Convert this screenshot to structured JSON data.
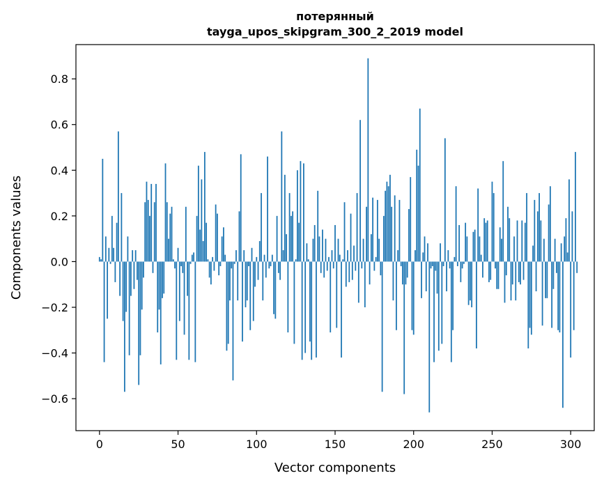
{
  "chart_data": {
    "type": "bar",
    "title_line1": "потерянный",
    "title_line2": "tayga_upos_skipgram_300_2_2019 model",
    "xlabel": "Vector components",
    "ylabel": "Components values",
    "xlim": [
      -15,
      315
    ],
    "ylim": [
      -0.74,
      0.95
    ],
    "xticks": [
      0,
      50,
      100,
      150,
      200,
      250,
      300
    ],
    "yticks": [
      -0.6,
      -0.4,
      -0.2,
      0.0,
      0.2,
      0.4,
      0.6,
      0.8
    ],
    "ytick_labels": [
      "−0.6",
      "−0.4",
      "−0.2",
      "0.0",
      "0.2",
      "0.4",
      "0.6",
      "0.8"
    ],
    "bar_color": "#1f77b4",
    "grid": false,
    "values": [
      0.02,
      0.01,
      0.45,
      -0.44,
      0.11,
      -0.25,
      0.06,
      -0.01,
      0.2,
      0.06,
      -0.09,
      0.17,
      0.57,
      -0.15,
      0.3,
      -0.26,
      -0.57,
      -0.22,
      0.11,
      -0.41,
      -0.15,
      0.05,
      -0.12,
      0.05,
      -0.08,
      -0.54,
      -0.41,
      -0.21,
      -0.07,
      0.26,
      0.35,
      0.27,
      0.2,
      0.34,
      -0.05,
      0.26,
      0.34,
      -0.31,
      -0.21,
      -0.45,
      -0.16,
      -0.14,
      0.43,
      0.26,
      0.1,
      0.21,
      0.24,
      0.01,
      -0.03,
      -0.43,
      0.06,
      -0.26,
      -0.02,
      -0.05,
      -0.32,
      0.24,
      -0.15,
      -0.43,
      -0.01,
      0.03,
      0.04,
      -0.44,
      0.2,
      0.42,
      0.14,
      0.36,
      0.09,
      0.48,
      0.17,
      0.01,
      -0.07,
      -0.1,
      0.02,
      -0.04,
      0.25,
      0.21,
      -0.06,
      -0.02,
      0.11,
      0.15,
      0.03,
      -0.39,
      -0.36,
      -0.17,
      -0.03,
      -0.52,
      -0.01,
      0.05,
      -0.17,
      0.22,
      0.47,
      -0.35,
      0.05,
      -0.2,
      -0.17,
      -0.02,
      -0.3,
      0.06,
      -0.26,
      -0.11,
      0.02,
      -0.08,
      0.09,
      0.3,
      -0.17,
      0.03,
      -0.07,
      0.46,
      -0.03,
      -0.02,
      0.03,
      -0.23,
      -0.25,
      0.2,
      -0.05,
      -0.08,
      0.57,
      0.05,
      0.38,
      0.12,
      -0.31,
      0.3,
      0.2,
      0.22,
      -0.36,
      0.01,
      0.4,
      0.17,
      0.44,
      -0.43,
      0.43,
      -0.4,
      0.08,
      0.01,
      -0.35,
      -0.43,
      0.1,
      0.16,
      -0.42,
      0.31,
      0.11,
      -0.05,
      0.14,
      -0.07,
      0.1,
      -0.04,
      0.02,
      -0.31,
      0.05,
      -0.03,
      0.16,
      -0.29,
      0.1,
      0.03,
      -0.42,
      0.01,
      0.26,
      -0.11,
      0.05,
      -0.09,
      0.21,
      -0.08,
      0.07,
      -0.04,
      0.3,
      -0.18,
      0.62,
      -0.03,
      0.1,
      -0.2,
      0.24,
      0.89,
      -0.1,
      0.12,
      0.28,
      -0.04,
      0.02,
      0.27,
      0.1,
      -0.06,
      -0.57,
      0.2,
      0.31,
      0.35,
      0.33,
      0.38,
      0.24,
      -0.17,
      0.29,
      -0.3,
      0.05,
      0.27,
      -0.02,
      -0.1,
      -0.58,
      -0.1,
      -0.07,
      0.23,
      0.37,
      -0.3,
      -0.32,
      0.05,
      0.49,
      0.42,
      0.67,
      -0.16,
      0.04,
      0.11,
      -0.13,
      0.08,
      -0.66,
      -0.03,
      -0.02,
      -0.44,
      -0.04,
      -0.14,
      -0.39,
      0.08,
      -0.36,
      -0.02,
      0.54,
      -0.13,
      0.05,
      -0.03,
      -0.44,
      -0.3,
      0.02,
      0.33,
      -0.02,
      0.16,
      -0.09,
      -0.03,
      -0.01,
      0.17,
      0.11,
      -0.19,
      -0.17,
      -0.2,
      0.13,
      0.14,
      -0.38,
      0.32,
      0.11,
      0.03,
      -0.07,
      0.19,
      0.17,
      0.18,
      -0.09,
      -0.08,
      0.35,
      0.3,
      -0.03,
      -0.12,
      -0.12,
      0.15,
      0.1,
      0.44,
      -0.18,
      -0.06,
      0.24,
      0.19,
      -0.17,
      -0.1,
      0.11,
      -0.17,
      0.18,
      -0.09,
      -0.1,
      0.18,
      -0.08,
      0.17,
      0.3,
      -0.38,
      -0.29,
      -0.32,
      0.07,
      0.27,
      -0.13,
      0.22,
      0.3,
      0.18,
      -0.28,
      0.1,
      -0.16,
      -0.16,
      0.25,
      0.33,
      -0.29,
      -0.12,
      0.1,
      -0.05,
      -0.3,
      -0.31,
      0.08,
      -0.64,
      0.11,
      0.19,
      0.04,
      0.36,
      -0.42,
      0.22,
      -0.3,
      0.48,
      -0.05
    ]
  }
}
